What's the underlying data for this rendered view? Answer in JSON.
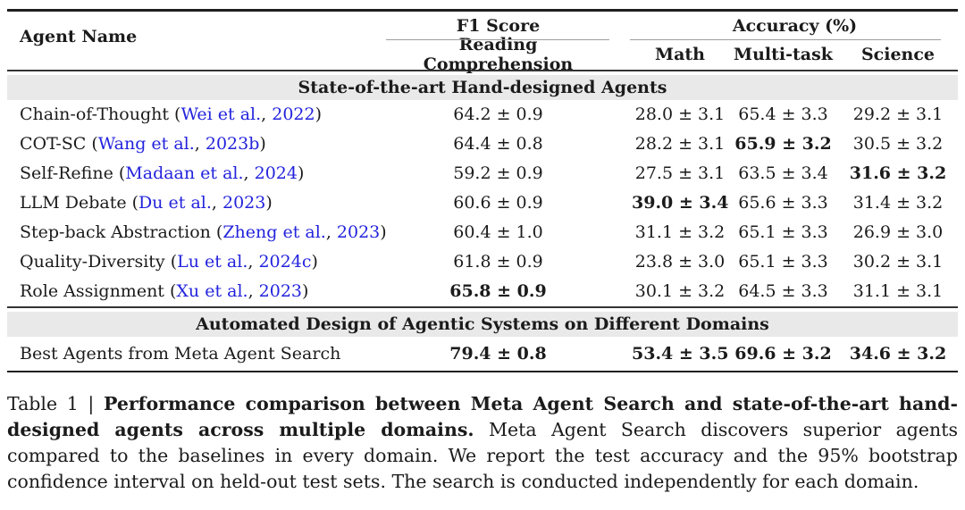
{
  "table": {
    "header": {
      "agent_col": "Agent Name",
      "groups": [
        {
          "label": "F1 Score",
          "subcolumns": [
            "Reading Comprehension"
          ]
        },
        {
          "label": "Accuracy (%)",
          "subcolumns": [
            "Math",
            "Multi-task",
            "Science"
          ]
        }
      ]
    },
    "sections": [
      {
        "header": "State-of-the-art Hand-designed Agents",
        "rows": [
          {
            "name": "Chain-of-Thought",
            "cite": {
              "name": "Wei et al.",
              "year": "2022"
            },
            "values": [
              {
                "text": "64.2 ± 0.9",
                "bold": false
              },
              {
                "text": "28.0 ± 3.1",
                "bold": false
              },
              {
                "text": "65.4 ± 3.3",
                "bold": false
              },
              {
                "text": "29.2 ± 3.1",
                "bold": false
              }
            ]
          },
          {
            "name": "COT-SC",
            "cite": {
              "name": "Wang et al.",
              "year": "2023b"
            },
            "values": [
              {
                "text": "64.4 ± 0.8",
                "bold": false
              },
              {
                "text": "28.2 ± 3.1",
                "bold": false
              },
              {
                "text": "65.9 ± 3.2",
                "bold": true
              },
              {
                "text": "30.5 ± 3.2",
                "bold": false
              }
            ]
          },
          {
            "name": "Self-Refine",
            "cite": {
              "name": "Madaan et al.",
              "year": "2024"
            },
            "values": [
              {
                "text": "59.2 ± 0.9",
                "bold": false
              },
              {
                "text": "27.5 ± 3.1",
                "bold": false
              },
              {
                "text": "63.5 ± 3.4",
                "bold": false
              },
              {
                "text": "31.6 ± 3.2",
                "bold": true
              }
            ]
          },
          {
            "name": "LLM Debate",
            "cite": {
              "name": "Du et al.",
              "year": "2023"
            },
            "values": [
              {
                "text": "60.6 ± 0.9",
                "bold": false
              },
              {
                "text": "39.0 ± 3.4",
                "bold": true
              },
              {
                "text": "65.6 ± 3.3",
                "bold": false
              },
              {
                "text": "31.4 ± 3.2",
                "bold": false
              }
            ]
          },
          {
            "name": "Step-back Abstraction",
            "cite": {
              "name": "Zheng et al.",
              "year": "2023"
            },
            "values": [
              {
                "text": "60.4 ± 1.0",
                "bold": false
              },
              {
                "text": "31.1 ± 3.2",
                "bold": false
              },
              {
                "text": "65.1 ± 3.3",
                "bold": false
              },
              {
                "text": "26.9 ± 3.0",
                "bold": false
              }
            ]
          },
          {
            "name": "Quality-Diversity",
            "cite": {
              "name": "Lu et al.",
              "year": "2024c"
            },
            "values": [
              {
                "text": "61.8 ± 0.9",
                "bold": false
              },
              {
                "text": "23.8 ± 3.0",
                "bold": false
              },
              {
                "text": "65.1 ± 3.3",
                "bold": false
              },
              {
                "text": "30.2 ± 3.1",
                "bold": false
              }
            ]
          },
          {
            "name": "Role Assignment",
            "cite": {
              "name": "Xu et al.",
              "year": "2023"
            },
            "values": [
              {
                "text": "65.8 ± 0.9",
                "bold": true
              },
              {
                "text": "30.1 ± 3.2",
                "bold": false
              },
              {
                "text": "64.5 ± 3.3",
                "bold": false
              },
              {
                "text": "31.1 ± 3.1",
                "bold": false
              }
            ]
          }
        ]
      },
      {
        "header": "Automated Design of Agentic Systems on Different Domains",
        "rows": [
          {
            "name": "Best Agents from Meta Agent Search",
            "cite": null,
            "values": [
              {
                "text": "79.4 ± 0.8",
                "bold": true
              },
              {
                "text": "53.4 ± 3.5",
                "bold": true
              },
              {
                "text": "69.6 ± 3.2",
                "bold": true
              },
              {
                "text": "34.6 ± 3.2",
                "bold": true
              }
            ]
          }
        ]
      }
    ]
  },
  "caption": {
    "label": "Table 1 | ",
    "bold_text": "Performance comparison between Meta Agent Search and state-of-the-art hand-designed agents across multiple domains.",
    "rest": " Meta Agent Search discovers superior agents compared to the baselines in every domain. We report the test accuracy and the 95% bootstrap confidence interval on held-out test sets. The search is conducted independently for each domain."
  },
  "colors": {
    "citation": "#2323dd",
    "section_bg": "#e9e9e9",
    "text": "#1b1b1b",
    "cmidrule": "#9e9e9e"
  }
}
